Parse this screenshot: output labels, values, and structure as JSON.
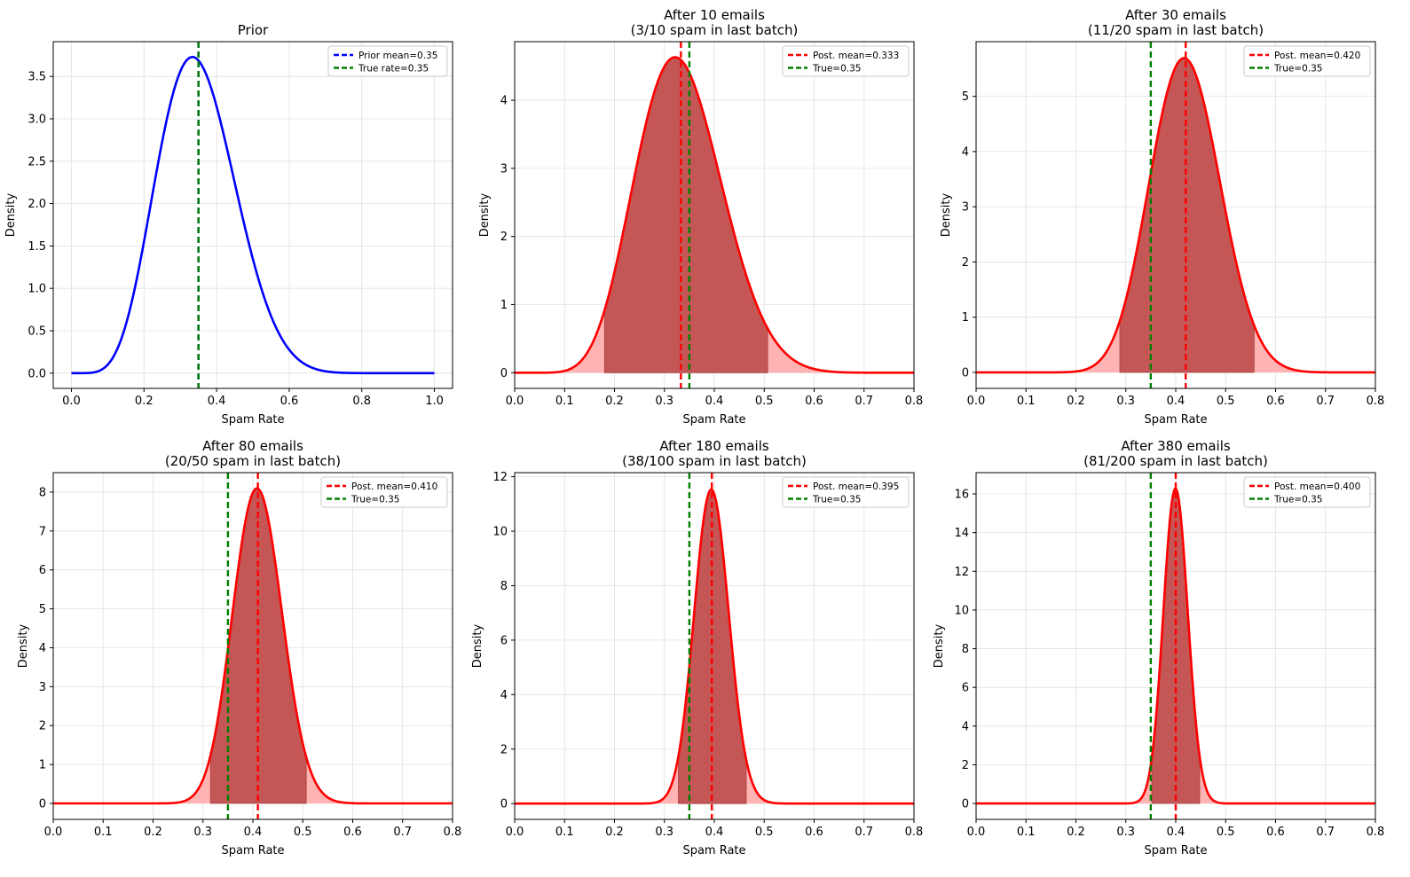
{
  "colors": {
    "prior_curve": "#0000ff",
    "posterior_curve": "#ff0000",
    "true_line": "#008000",
    "mean_line": "#ff0000",
    "fill_light": "#ffb3b3",
    "fill_dark": "#c45656",
    "grid": "#e0e0e0"
  },
  "chart_data": [
    {
      "type": "line",
      "title": "Prior",
      "xlabel": "Spam Rate",
      "ylabel": "Density",
      "xlim": [
        -0.05,
        1.05
      ],
      "ylim": [
        -0.18,
        3.91
      ],
      "xticks": [
        0.0,
        0.2,
        0.4,
        0.6,
        0.8,
        1.0
      ],
      "xtick_labels": [
        "0.0",
        "0.2",
        "0.4",
        "0.6",
        "0.8",
        "1.0"
      ],
      "yticks": [
        0.0,
        0.5,
        1.0,
        1.5,
        2.0,
        2.5,
        3.0,
        3.5
      ],
      "ytick_labels": [
        "0.0",
        "0.5",
        "1.0",
        "1.5",
        "2.0",
        "2.5",
        "3.0",
        "3.5"
      ],
      "grid": true,
      "legend_position": "top-right",
      "curve": {
        "kind": "beta",
        "alpha": 7,
        "beta": 13,
        "x_range": [
          0,
          1
        ],
        "color": "prior_curve"
      },
      "vlines": [
        {
          "x": 0.35,
          "color": "mean_line_blue",
          "label": "Prior mean=0.35"
        },
        {
          "x": 0.35,
          "color": "true_line",
          "label": "True rate=0.35"
        }
      ]
    },
    {
      "type": "area",
      "title": "After 10 emails\n(3/10 spam in last batch)",
      "xlabel": "Spam Rate",
      "ylabel": "Density",
      "xlim": [
        0,
        0.8
      ],
      "ylim": [
        -0.23,
        4.86
      ],
      "xticks": [
        0.0,
        0.1,
        0.2,
        0.3,
        0.4,
        0.5,
        0.6,
        0.7,
        0.8
      ],
      "xtick_labels": [
        "0.0",
        "0.1",
        "0.2",
        "0.3",
        "0.4",
        "0.5",
        "0.6",
        "0.7",
        "0.8"
      ],
      "yticks": [
        0,
        1,
        2,
        3,
        4
      ],
      "ytick_labels": [
        "0",
        "1",
        "2",
        "3",
        "4"
      ],
      "grid": true,
      "legend_position": "top-right",
      "curve": {
        "kind": "beta",
        "alpha": 10,
        "beta": 20,
        "x_range": [
          0,
          0.8
        ]
      },
      "credible_interval": [
        0.18,
        0.507
      ],
      "vlines": [
        {
          "x": 0.333,
          "color": "mean_line",
          "label": "Post. mean=0.333"
        },
        {
          "x": 0.35,
          "color": "true_line",
          "label": "True=0.35"
        }
      ]
    },
    {
      "type": "area",
      "title": "After 30 emails\n(11/20 spam in last batch)",
      "xlabel": "Spam Rate",
      "ylabel": "Density",
      "xlim": [
        0,
        0.8
      ],
      "ylim": [
        -0.29,
        5.99
      ],
      "xticks": [
        0.0,
        0.1,
        0.2,
        0.3,
        0.4,
        0.5,
        0.6,
        0.7,
        0.8
      ],
      "xtick_labels": [
        "0.0",
        "0.1",
        "0.2",
        "0.3",
        "0.4",
        "0.5",
        "0.6",
        "0.7",
        "0.8"
      ],
      "yticks": [
        0,
        1,
        2,
        3,
        4,
        5
      ],
      "ytick_labels": [
        "0",
        "1",
        "2",
        "3",
        "4",
        "5"
      ],
      "grid": true,
      "legend_position": "top-right",
      "curve": {
        "kind": "beta",
        "alpha": 21,
        "beta": 29,
        "x_range": [
          0,
          0.8
        ]
      },
      "credible_interval": [
        0.288,
        0.557
      ],
      "vlines": [
        {
          "x": 0.42,
          "color": "mean_line",
          "label": "Post. mean=0.420"
        },
        {
          "x": 0.35,
          "color": "true_line",
          "label": "True=0.35"
        }
      ]
    },
    {
      "type": "area",
      "title": "After 80 emails\n(20/50 spam in last batch)",
      "xlabel": "Spam Rate",
      "ylabel": "Density",
      "xlim": [
        0,
        0.8
      ],
      "ylim": [
        -0.41,
        8.5
      ],
      "xticks": [
        0.0,
        0.1,
        0.2,
        0.3,
        0.4,
        0.5,
        0.6,
        0.7,
        0.8
      ],
      "xtick_labels": [
        "0.0",
        "0.1",
        "0.2",
        "0.3",
        "0.4",
        "0.5",
        "0.6",
        "0.7",
        "0.8"
      ],
      "yticks": [
        0,
        1,
        2,
        3,
        4,
        5,
        6,
        7,
        8
      ],
      "ytick_labels": [
        "0",
        "1",
        "2",
        "3",
        "4",
        "5",
        "6",
        "7",
        "8"
      ],
      "grid": true,
      "legend_position": "top-right",
      "curve": {
        "kind": "beta",
        "alpha": 41,
        "beta": 59,
        "x_range": [
          0,
          0.8
        ]
      },
      "credible_interval": [
        0.315,
        0.507
      ],
      "vlines": [
        {
          "x": 0.41,
          "color": "mean_line",
          "label": "Post. mean=0.410"
        },
        {
          "x": 0.35,
          "color": "true_line",
          "label": "True=0.35"
        }
      ]
    },
    {
      "type": "area",
      "title": "After 180 emails\n(38/100 spam in last batch)",
      "xlabel": "Spam Rate",
      "ylabel": "Density",
      "xlim": [
        0,
        0.8
      ],
      "ylim": [
        -0.58,
        12.15
      ],
      "xticks": [
        0.0,
        0.1,
        0.2,
        0.3,
        0.4,
        0.5,
        0.6,
        0.7,
        0.8
      ],
      "xtick_labels": [
        "0.0",
        "0.1",
        "0.2",
        "0.3",
        "0.4",
        "0.5",
        "0.6",
        "0.7",
        "0.8"
      ],
      "yticks": [
        0,
        2,
        4,
        6,
        8,
        10,
        12
      ],
      "ytick_labels": [
        "0",
        "2",
        "4",
        "6",
        "8",
        "10",
        "12"
      ],
      "grid": true,
      "legend_position": "top-right",
      "curve": {
        "kind": "beta",
        "alpha": 79,
        "beta": 121,
        "x_range": [
          0,
          0.8
        ]
      },
      "credible_interval": [
        0.328,
        0.464
      ],
      "vlines": [
        {
          "x": 0.395,
          "color": "mean_line",
          "label": "Post. mean=0.395"
        },
        {
          "x": 0.35,
          "color": "true_line",
          "label": "True=0.35"
        }
      ]
    },
    {
      "type": "area",
      "title": "After 380 emails\n(81/200 spam in last batch)",
      "xlabel": "Spam Rate",
      "ylabel": "Density",
      "xlim": [
        0,
        0.8
      ],
      "ylim": [
        -0.82,
        17.1
      ],
      "xticks": [
        0.0,
        0.1,
        0.2,
        0.3,
        0.4,
        0.5,
        0.6,
        0.7,
        0.8
      ],
      "xtick_labels": [
        "0.0",
        "0.1",
        "0.2",
        "0.3",
        "0.4",
        "0.5",
        "0.6",
        "0.7",
        "0.8"
      ],
      "yticks": [
        0,
        2,
        4,
        6,
        8,
        10,
        12,
        14,
        16
      ],
      "ytick_labels": [
        "0",
        "2",
        "4",
        "6",
        "8",
        "10",
        "12",
        "14",
        "16"
      ],
      "grid": true,
      "legend_position": "top-right",
      "curve": {
        "kind": "beta",
        "alpha": 160,
        "beta": 240,
        "x_range": [
          0,
          0.8
        ]
      },
      "credible_interval": [
        0.352,
        0.448
      ],
      "vlines": [
        {
          "x": 0.4,
          "color": "mean_line",
          "label": "Post. mean=0.400"
        },
        {
          "x": 0.35,
          "color": "true_line",
          "label": "True=0.35"
        }
      ]
    }
  ]
}
